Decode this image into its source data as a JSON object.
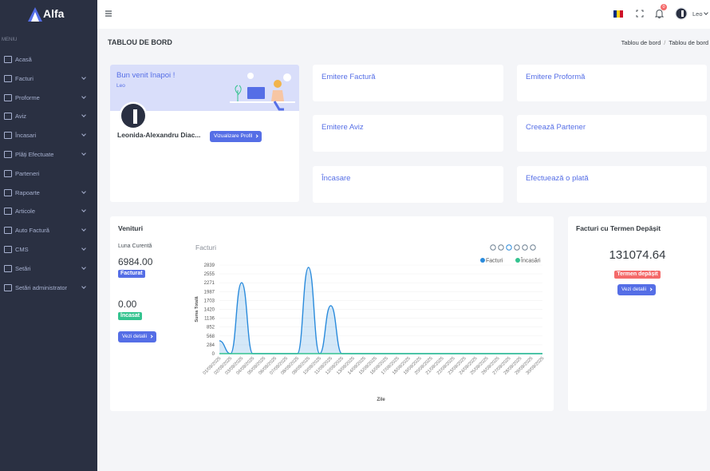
{
  "sidebar": {
    "logo": "Alfa",
    "menu_title": "MENIU",
    "items": [
      {
        "label": "Acasă",
        "submenu": false
      },
      {
        "label": "Facturi",
        "submenu": true
      },
      {
        "label": "Proforme",
        "submenu": true
      },
      {
        "label": "Aviz",
        "submenu": true
      },
      {
        "label": "Încasari",
        "submenu": true
      },
      {
        "label": "Plăți Efectuate",
        "submenu": true
      },
      {
        "label": "Parteneri",
        "submenu": false
      },
      {
        "label": "Rapoarte",
        "submenu": true
      },
      {
        "label": "Articole",
        "submenu": true
      },
      {
        "label": "Auto Factură",
        "submenu": true
      },
      {
        "label": "CMS",
        "submenu": true
      },
      {
        "label": "Setări",
        "submenu": true
      },
      {
        "label": "Setări administrator",
        "submenu": true
      }
    ]
  },
  "header": {
    "notifications": 0,
    "user": "Leo"
  },
  "page": {
    "title": "TABLOU DE BORD",
    "breadcrumb": [
      "Tablou de bord",
      "Tablou de bord"
    ]
  },
  "welcome": {
    "title": "Bun venit înapoi !",
    "user": "Leo",
    "name": "Leonida-Alexandru Diac...",
    "button": "Vizualizare Profil"
  },
  "actions": [
    "Emitere Factură",
    "Emitere Proformă",
    "Emitere Aviz",
    "Creează Partener",
    "Încasare",
    "Efectuează o plată"
  ],
  "revenue": {
    "title": "Venituri",
    "period": "Luna Curentă",
    "invoiced": "6984.00",
    "invoiced_label": "Facturat",
    "collected": "0.00",
    "collected_label": "Încasat",
    "button": "Vezi detalii"
  },
  "overdue": {
    "title": "Facturi cu Termen Depășit",
    "amount": "131074.64",
    "label": "Termen depășit",
    "button": "Vezi detalii"
  },
  "chart_data": {
    "type": "area",
    "title": "Facturi",
    "y_label": "Suma Totală",
    "x_label": "Zile",
    "categories": [
      "01/09/2025",
      "02/09/2025",
      "03/09/2025",
      "04/09/2025",
      "05/09/2025",
      "06/09/2025",
      "07/09/2025",
      "08/09/2025",
      "09/09/2025",
      "10/09/2025",
      "11/09/2025",
      "12/09/2025",
      "13/09/2025",
      "14/09/2025",
      "15/09/2025",
      "16/09/2025",
      "17/09/2025",
      "18/09/2025",
      "19/09/2025",
      "20/09/2025",
      "21/09/2025",
      "22/09/2025",
      "23/09/2025",
      "24/09/2025",
      "25/09/2025",
      "26/09/2025",
      "27/09/2025",
      "28/09/2025",
      "29/09/2025",
      "30/09/2025"
    ],
    "series": [
      {
        "name": "Facturi",
        "color": "#2a8bdc",
        "values": [
          410,
          0,
          2275,
          0,
          0,
          0,
          0,
          0,
          2764,
          0,
          1535,
          0,
          0,
          0,
          0,
          0,
          0,
          0,
          0,
          0,
          0,
          0,
          0,
          0,
          0,
          0,
          0,
          0,
          0,
          0
        ]
      },
      {
        "name": "Încasări",
        "color": "#34c38f",
        "values": [
          0,
          0,
          0,
          0,
          0,
          0,
          0,
          0,
          0,
          0,
          0,
          0,
          0,
          0,
          0,
          0,
          0,
          0,
          0,
          0,
          0,
          0,
          0,
          0,
          0,
          0,
          0,
          0,
          0,
          0
        ]
      }
    ],
    "ylim": [
      0,
      2839
    ],
    "yticks": [
      0,
      284,
      568,
      852,
      1136,
      1420,
      1703,
      1987,
      2271,
      2555,
      2839
    ],
    "grid": true,
    "legend": "top-right"
  }
}
